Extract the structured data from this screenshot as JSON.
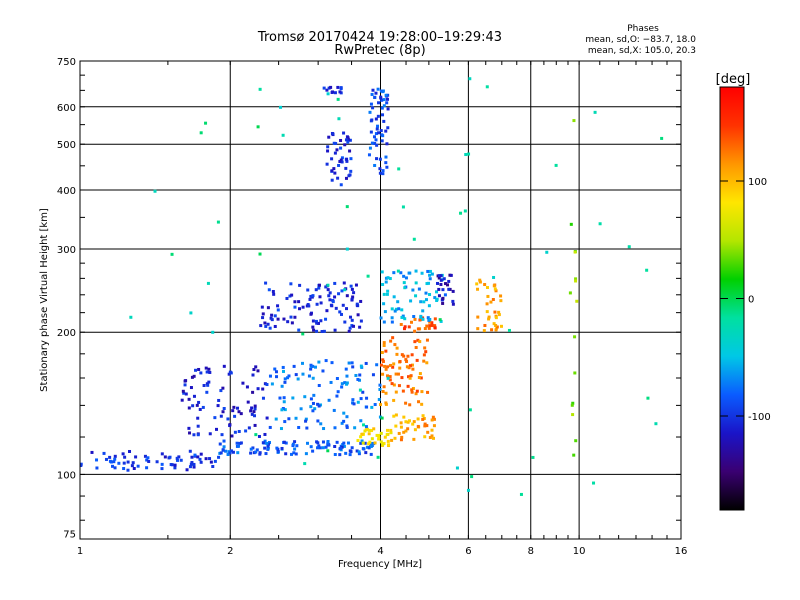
{
  "chart_data": {
    "type": "scatter",
    "title": "Tromsø 20170424 19:28:00–19:29:43",
    "subtitle": "RwPretec (8p)",
    "phases": {
      "heading": "Phases",
      "line_o": "mean, sd,O: −83.7, 18.0",
      "line_x": "mean, sd,X: 105.0, 20.3"
    },
    "xlabel": "Frequency [MHz]",
    "ylabel": "Stationary phase Virtual Height [km]",
    "x_scale": "log",
    "y_scale": "log",
    "xlim": [
      1,
      16
    ],
    "ylim": [
      73,
      750
    ],
    "x_ticks": [
      1,
      2,
      4,
      6,
      8,
      10,
      16
    ],
    "y_ticks": [
      75,
      100,
      200,
      300,
      400,
      500,
      600,
      750
    ],
    "grid": true,
    "colorbar": {
      "label": "[deg]",
      "range": [
        -180,
        180
      ],
      "ticks": [
        100,
        0,
        -100
      ],
      "colors": [
        "#000000",
        "#3a0072",
        "#1a14c8",
        "#0a5cff",
        "#00c8e6",
        "#00e0a0",
        "#00d000",
        "#b4e600",
        "#ffe600",
        "#ff9600",
        "#ff3200",
        "#ff0000"
      ]
    },
    "series": [
      {
        "f_min": 1.0,
        "f_max": 1.9,
        "h_min": 102,
        "h_max": 112,
        "phase": -100,
        "count": 70
      },
      {
        "f_min": 1.9,
        "f_max": 3.9,
        "h_min": 110,
        "h_max": 118,
        "phase": -85,
        "count": 110
      },
      {
        "f_min": 3.6,
        "f_max": 4.2,
        "h_min": 115,
        "h_max": 125,
        "phase": 80,
        "count": 35
      },
      {
        "f_min": 4.2,
        "f_max": 5.2,
        "h_min": 118,
        "h_max": 135,
        "phase": 110,
        "count": 40
      },
      {
        "f_min": 4.0,
        "f_max": 5.0,
        "h_min": 140,
        "h_max": 195,
        "phase": 125,
        "count": 80
      },
      {
        "f_min": 4.4,
        "f_max": 5.2,
        "h_min": 200,
        "h_max": 215,
        "phase": 140,
        "count": 25
      },
      {
        "f_min": 1.6,
        "f_max": 2.4,
        "h_min": 120,
        "h_max": 170,
        "phase": -110,
        "count": 90
      },
      {
        "f_min": 2.4,
        "f_max": 4.0,
        "h_min": 125,
        "h_max": 175,
        "phase": -75,
        "count": 110
      },
      {
        "f_min": 2.3,
        "f_max": 3.7,
        "h_min": 200,
        "h_max": 255,
        "phase": -105,
        "count": 110
      },
      {
        "f_min": 4.0,
        "f_max": 5.4,
        "h_min": 210,
        "h_max": 270,
        "phase": -60,
        "count": 70
      },
      {
        "f_min": 6.2,
        "f_max": 7.0,
        "h_min": 200,
        "h_max": 260,
        "phase": 110,
        "count": 35
      },
      {
        "f_min": 5.2,
        "f_max": 5.6,
        "h_min": 225,
        "h_max": 265,
        "phase": -120,
        "count": 25
      },
      {
        "f_min": 3.1,
        "f_max": 3.5,
        "h_min": 410,
        "h_max": 530,
        "phase": -105,
        "count": 45
      },
      {
        "f_min": 3.8,
        "f_max": 4.15,
        "h_min": 430,
        "h_max": 660,
        "phase": -90,
        "count": 60
      },
      {
        "f_min": 3.05,
        "f_max": 3.35,
        "h_min": 640,
        "h_max": 660,
        "phase": -100,
        "count": 12
      },
      {
        "f_min": 1.2,
        "f_max": 15.0,
        "h_min": 90,
        "h_max": 700,
        "phase": -20,
        "count": 60
      },
      {
        "f_min": 9.6,
        "f_max": 9.9,
        "h_min": 100,
        "h_max": 620,
        "phase": 40,
        "count": 15
      }
    ]
  }
}
